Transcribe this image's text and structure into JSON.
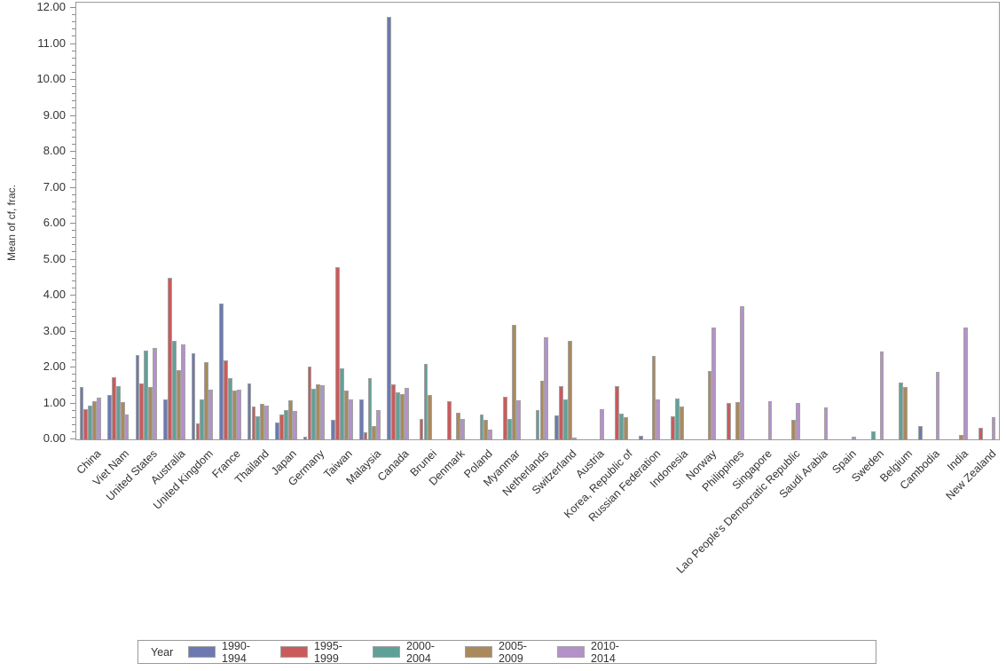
{
  "colors": {
    "bar_border": "#a3a3a3",
    "frame": "#9a9a9a",
    "text": "#333333",
    "background": "#ffffff"
  },
  "y_axis": {
    "title": "Mean of cf, frac.",
    "min": 0,
    "max": 12,
    "major_step": 1,
    "minor_step": 0.2,
    "label_decimals": 2
  },
  "chart_data": {
    "type": "bar",
    "title": "",
    "xlabel": "",
    "ylabel": "Mean of cf, frac.",
    "ylim": [
      0,
      12
    ],
    "grid": false,
    "legend_title": "Year",
    "legend_position": "bottom",
    "categories": [
      "China",
      "Viet Nam",
      "United States",
      "Australia",
      "United Kingdom",
      "France",
      "Thailand",
      "Japan",
      "Germany",
      "Taiwan",
      "Malaysia",
      "Canada",
      "Brunei",
      "Denmark",
      "Poland",
      "Myanmar",
      "Netherlands",
      "Switzerland",
      "Austria",
      "Korea, Republic of",
      "Russian Federation",
      "Indonesia",
      "Norway",
      "Philippines",
      "Singapore",
      "Lao People's Democratic Republic",
      "Saudi Arabia",
      "Spain",
      "Sweden",
      "Belgium",
      "Cambodia",
      "India",
      "New Zealand"
    ],
    "series": [
      {
        "name": "1990-1994",
        "color": "#6c7ab1",
        "values": [
          1.45,
          1.23,
          2.35,
          1.1,
          2.4,
          3.78,
          1.55,
          0.48,
          0.07,
          0.55,
          1.12,
          11.75,
          0,
          0,
          0,
          0,
          0,
          0.66,
          0,
          0,
          0.1,
          0,
          0,
          0,
          0,
          0,
          0,
          0,
          0,
          0,
          0.36,
          0,
          0
        ]
      },
      {
        "name": "1995-1999",
        "color": "#cb5a5a",
        "values": [
          0.85,
          1.72,
          1.55,
          4.5,
          0.44,
          2.2,
          0.92,
          0.7,
          2.02,
          4.78,
          0.2,
          1.52,
          0.58,
          1.05,
          0,
          1.18,
          0,
          1.47,
          0,
          1.47,
          0,
          0.65,
          0,
          1.02,
          0,
          0,
          0,
          0,
          0,
          0,
          0,
          0,
          0.33
        ]
      },
      {
        "name": "2000-2004",
        "color": "#5fa198",
        "values": [
          0.94,
          1.48,
          2.48,
          2.75,
          1.12,
          1.71,
          0.63,
          0.81,
          1.4,
          1.98,
          1.7,
          1.3,
          2.1,
          0,
          0.7,
          0.58,
          0.82,
          1.1,
          0,
          0.72,
          0,
          1.14,
          0,
          0,
          0,
          0,
          0,
          0,
          0.23,
          1.58,
          0,
          0,
          0
        ]
      },
      {
        "name": "2005-2009",
        "color": "#aa8a5c",
        "values": [
          1.06,
          1.04,
          1.45,
          1.93,
          2.15,
          1.36,
          0.98,
          1.08,
          1.52,
          1.37,
          0.38,
          1.27,
          1.23,
          0.75,
          0.55,
          3.18,
          1.62,
          2.73,
          0,
          0.62,
          2.32,
          0.92,
          1.9,
          1.03,
          0,
          0.55,
          0,
          0,
          0,
          1.46,
          0,
          0.12,
          0
        ]
      },
      {
        "name": "2010-2014",
        "color": "#b591ca",
        "values": [
          1.17,
          0.7,
          2.55,
          2.65,
          1.38,
          1.39,
          0.94,
          0.78,
          1.5,
          1.1,
          0.82,
          1.44,
          0,
          0.57,
          0.27,
          1.08,
          2.85,
          0.05,
          0.84,
          0,
          1.12,
          0,
          3.1,
          3.7,
          1.06,
          1.02,
          0.88,
          0.07,
          2.44,
          0,
          1.88,
          3.12,
          0.61
        ]
      }
    ]
  }
}
